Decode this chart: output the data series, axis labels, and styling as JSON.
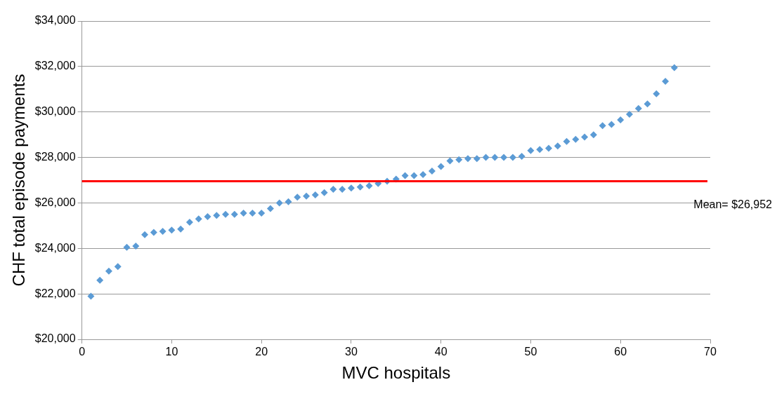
{
  "chart_data": {
    "type": "scatter",
    "xlabel": "MVC hospitals",
    "ylabel": "CHF total episode payments",
    "x": [
      1,
      2,
      3,
      4,
      5,
      6,
      7,
      8,
      9,
      10,
      11,
      12,
      13,
      14,
      15,
      16,
      17,
      18,
      19,
      20,
      21,
      22,
      23,
      24,
      25,
      26,
      27,
      28,
      29,
      30,
      31,
      32,
      33,
      34,
      35,
      36,
      37,
      38,
      39,
      40,
      41,
      42,
      43,
      44,
      45,
      46,
      47,
      48,
      49,
      50,
      51,
      52,
      53,
      54,
      55,
      56,
      57,
      58,
      59,
      60,
      61,
      62,
      63,
      64,
      65,
      66
    ],
    "values": [
      21900,
      22600,
      23000,
      23200,
      24050,
      24100,
      24600,
      24700,
      24750,
      24800,
      24850,
      25150,
      25300,
      25400,
      25450,
      25500,
      25500,
      25550,
      25550,
      25550,
      25750,
      26000,
      26050,
      26250,
      26300,
      26350,
      26450,
      26600,
      26600,
      26650,
      26700,
      26750,
      26850,
      26950,
      27050,
      27200,
      27200,
      27250,
      27400,
      27600,
      27850,
      27900,
      27950,
      27950,
      28000,
      28000,
      28000,
      28000,
      28050,
      28300,
      28350,
      28400,
      28500,
      28700,
      28800,
      28900,
      29000,
      29400,
      29450,
      29650,
      29900,
      30150,
      30350,
      30800,
      31350,
      31950
    ],
    "color": "#5b9bd5",
    "marker": "diamond",
    "xlim": [
      0,
      70
    ],
    "xticks": [
      0,
      10,
      20,
      30,
      40,
      50,
      60,
      70
    ],
    "ylim": [
      20000,
      34000
    ],
    "yticks": [
      {
        "value": 20000,
        "label": "$20,000"
      },
      {
        "value": 22000,
        "label": "$22,000"
      },
      {
        "value": 24000,
        "label": "$24,000"
      },
      {
        "value": 26000,
        "label": "$26,000"
      },
      {
        "value": 28000,
        "label": "$28,000"
      },
      {
        "value": 30000,
        "label": "$30,000"
      },
      {
        "value": 32000,
        "label": "$32,000"
      },
      {
        "value": 34000,
        "label": "$34,000"
      }
    ],
    "grid": "y",
    "legend": false,
    "ref_lines": [
      {
        "axis": "y",
        "value": 26952,
        "label": "Mean= $26,952",
        "color": "#ff0000"
      }
    ]
  }
}
